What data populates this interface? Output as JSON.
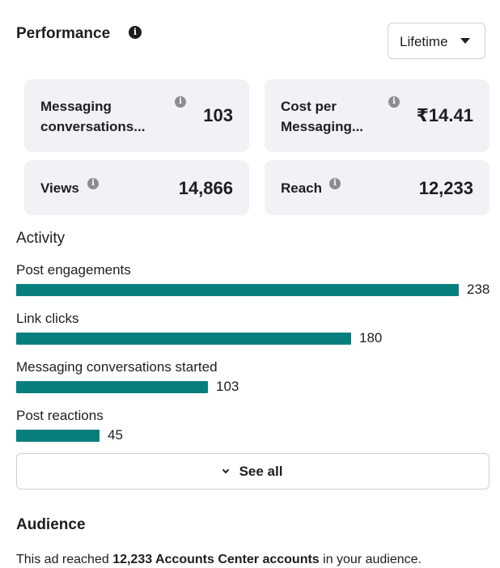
{
  "performance": {
    "title": "Performance",
    "info_icon": "info-icon",
    "range_selector": {
      "selected": "Lifetime",
      "icon": "caret-down-icon"
    }
  },
  "metrics": [
    {
      "label_line1": "Messaging",
      "label_line2": "conversations...",
      "value": "103"
    },
    {
      "label_line1": "Cost per",
      "label_line2": "Messaging...",
      "value": "₹14.41"
    },
    {
      "label_line1": "Views",
      "value": "14,866"
    },
    {
      "label_line1": "Reach",
      "value": "12,233"
    }
  ],
  "activity": {
    "title": "Activity",
    "max_value": 238,
    "items": [
      {
        "label": "Post engagements",
        "value": "238",
        "amount": 238
      },
      {
        "label": "Link clicks",
        "value": "180",
        "amount": 180
      },
      {
        "label": "Messaging conversations started",
        "value": "103",
        "amount": 103
      },
      {
        "label": "Post reactions",
        "value": "45",
        "amount": 45
      }
    ],
    "see_all_label": "See all"
  },
  "audience": {
    "title": "Audience",
    "text_prefix": "This ad reached ",
    "text_bold": "12,233 Accounts Center accounts",
    "text_suffix": " in your audience."
  },
  "colors": {
    "bar": "#087f7f",
    "card_bg": "#f0f2f5",
    "text": "#1c1e21"
  }
}
